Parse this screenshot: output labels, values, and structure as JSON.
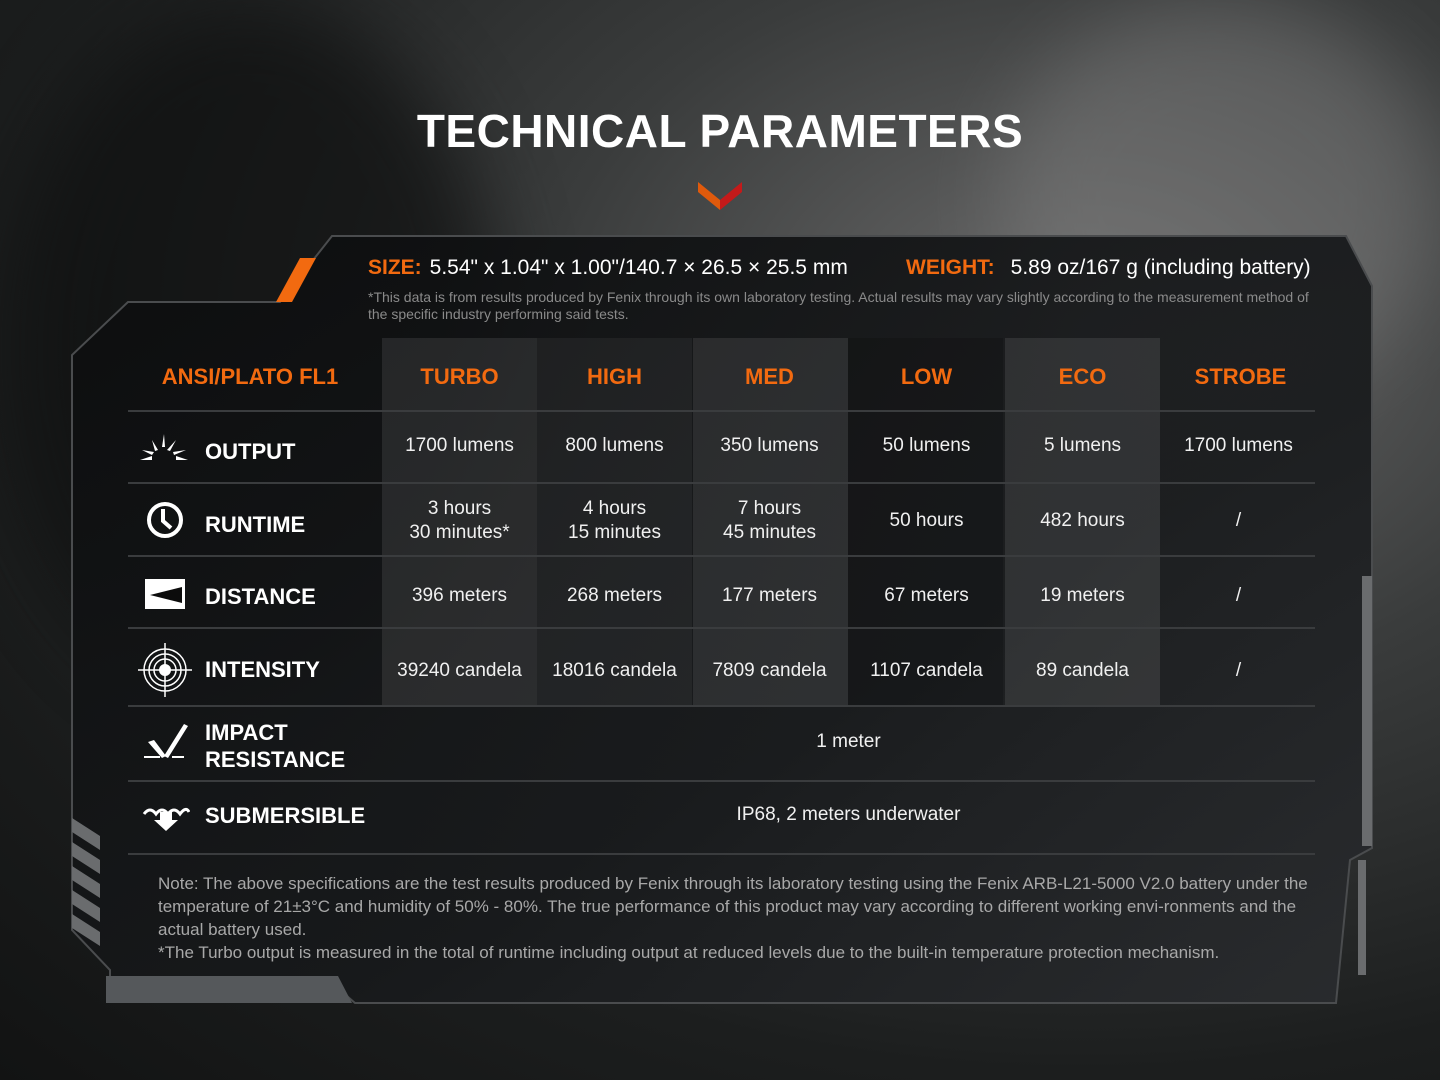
{
  "title": "TECHNICAL PARAMETERS",
  "colors": {
    "accent": "#f26a10",
    "text": "#ffffff",
    "muted": "#a8a8a8"
  },
  "specs": {
    "size_label": "SIZE:",
    "size_value": "5.54\" x 1.04\" x 1.00\"/140.7 × 26.5 × 25.5 mm",
    "weight_label": "WEIGHT:",
    "weight_value": "5.89 oz/167 g (including battery)",
    "disclaimer": "*This data is from results produced by Fenix through its own laboratory testing. Actual results may vary slightly according to the measurement method of the specific industry performing said tests."
  },
  "table": {
    "headers": [
      "ANSI/PLATO FL1",
      "TURBO",
      "HIGH",
      "MED",
      "LOW",
      "ECO",
      "STROBE"
    ],
    "rows": [
      {
        "label": "OUTPUT",
        "icon": "burst-icon",
        "values": [
          "1700 lumens",
          "800 lumens",
          "350 lumens",
          "50 lumens",
          "5 lumens",
          "1700 lumens"
        ]
      },
      {
        "label": "RUNTIME",
        "icon": "clock-icon",
        "values": [
          "3 hours\n30 minutes*",
          "4 hours\n15 minutes",
          "7 hours\n45 minutes",
          "50 hours",
          "482 hours",
          "/"
        ]
      },
      {
        "label": "DISTANCE",
        "icon": "beam-distance-icon",
        "values": [
          "396 meters",
          "268 meters",
          "177 meters",
          "67 meters",
          "19 meters",
          "/"
        ]
      },
      {
        "label": "INTENSITY",
        "icon": "target-icon",
        "values": [
          "39240 candela",
          "18016 candela",
          "7809 candela",
          "1107 candela",
          "89 candela",
          "/"
        ]
      },
      {
        "label": "IMPACT\nRESISTANCE",
        "icon": "impact-icon",
        "value": "1 meter"
      },
      {
        "label": "SUBMERSIBLE",
        "icon": "water-icon",
        "value": "IP68, 2 meters underwater"
      }
    ]
  },
  "note": "Note: The above specifications are the test results produced by Fenix through its laboratory testing using the Fenix ARB-L21-5000 V2.0 battery under the temperature of 21±3°C and humidity of 50% - 80%. The true performance of this product may vary according to different working envi-ronments and the actual battery used.\n*The Turbo output is measured in the total of runtime including output at reduced levels due to the built-in temperature protection mechanism."
}
